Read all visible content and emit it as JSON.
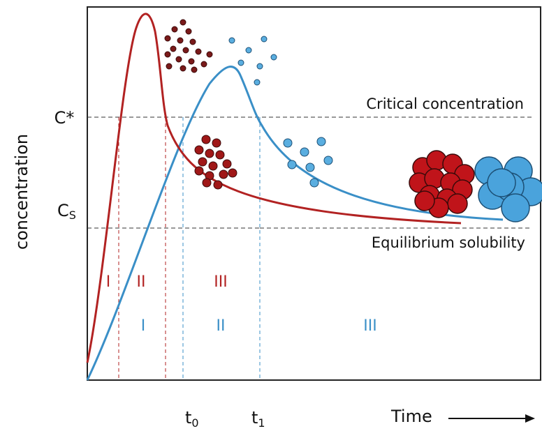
{
  "axes": {
    "y_label": "concentration",
    "x_label": "Time",
    "c_star": "C*",
    "c_s": {
      "base": "C",
      "sub": "S"
    },
    "t0": {
      "base": "t",
      "sub": "0"
    },
    "t1": {
      "base": "t",
      "sub": "1"
    }
  },
  "lines": {
    "critical": "Critical concentration",
    "equilibrium": "Equilibrium solubility"
  },
  "stages_red": [
    "I",
    "II",
    "III"
  ],
  "stages_blue": [
    "I",
    "II",
    "III"
  ]
}
